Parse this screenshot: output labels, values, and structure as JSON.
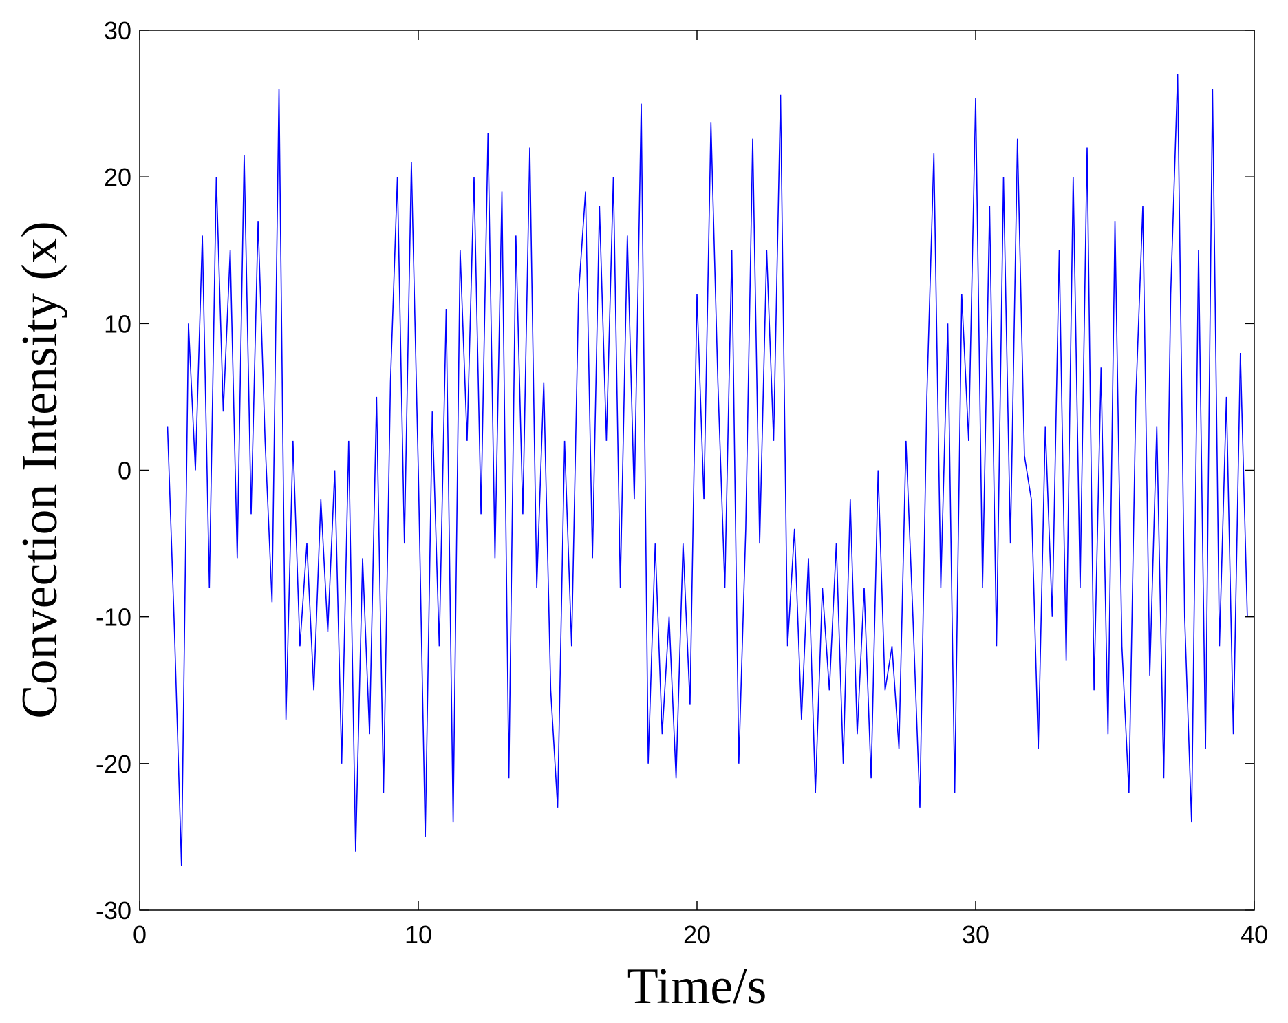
{
  "chart_data": {
    "type": "line",
    "xlabel": "Time/s",
    "ylabel": "Convection Intensity (x)",
    "xlim": [
      0,
      40
    ],
    "ylim": [
      -30,
      30
    ],
    "xticks": [
      0,
      10,
      20,
      30,
      40
    ],
    "yticks": [
      -30,
      -20,
      -10,
      0,
      10,
      20,
      30
    ],
    "x": [
      1,
      1.25,
      1.5,
      1.75,
      2,
      2.25,
      2.5,
      2.75,
      3,
      3.25,
      3.5,
      3.75,
      4,
      4.25,
      4.5,
      4.75,
      5,
      5.25,
      5.5,
      5.75,
      6,
      6.25,
      6.5,
      6.75,
      7,
      7.25,
      7.5,
      7.75,
      8,
      8.25,
      8.5,
      8.75,
      9,
      9.25,
      9.5,
      9.75,
      10,
      10.25,
      10.5,
      10.75,
      11,
      11.25,
      11.5,
      11.75,
      12,
      12.25,
      12.5,
      12.75,
      13,
      13.25,
      13.5,
      13.75,
      14,
      14.25,
      14.5,
      14.75,
      15,
      15.25,
      15.5,
      15.75,
      16,
      16.25,
      16.5,
      16.75,
      17,
      17.25,
      17.5,
      17.75,
      18,
      18.25,
      18.5,
      18.75,
      19,
      19.25,
      19.5,
      19.75,
      20,
      20.25,
      20.5,
      20.75,
      21,
      21.25,
      21.5,
      21.75,
      22,
      22.25,
      22.5,
      22.75,
      23,
      23.25,
      23.5,
      23.75,
      24,
      24.25,
      24.5,
      24.75,
      25,
      25.25,
      25.5,
      25.75,
      26,
      26.25,
      26.5,
      26.75,
      27,
      27.25,
      27.5,
      27.75,
      28,
      28.25,
      28.5,
      28.75,
      29,
      29.25,
      29.5,
      29.75,
      30,
      30.25,
      30.5,
      30.75,
      31,
      31.25,
      31.5,
      31.75,
      32,
      32.25,
      32.5,
      32.75,
      33,
      33.25,
      33.5,
      33.75,
      34,
      34.25,
      34.5,
      34.75,
      35,
      35.25,
      35.5,
      35.75,
      36,
      36.25,
      36.5,
      36.75,
      37,
      37.25,
      37.5,
      37.75,
      38,
      38.25,
      38.5,
      38.75,
      39,
      39.25,
      39.5,
      39.75
    ],
    "series": [
      {
        "color": "#0000ff",
        "values": [
          3,
          -11,
          -27,
          10,
          0,
          16,
          -8,
          20,
          4,
          15,
          -6,
          21.5,
          -3,
          17,
          2,
          -9,
          26,
          -17,
          2,
          -12,
          -5,
          -15,
          -2,
          -11,
          0,
          -20,
          2,
          -26,
          -6,
          -18,
          5,
          -22,
          6,
          20,
          -5,
          21,
          0,
          -25,
          4,
          -12,
          11,
          -24,
          15,
          2,
          20,
          -3,
          23,
          -6,
          19,
          -21,
          16,
          -3,
          22,
          -8,
          6,
          -15,
          -23,
          2,
          -12,
          12,
          19,
          -6,
          18,
          2,
          20,
          -8,
          16,
          -2,
          25,
          -20,
          -5,
          -18,
          -10,
          -21,
          -5,
          -16,
          12,
          -2,
          23.7,
          6,
          -8,
          15,
          -20,
          -4,
          22.6,
          -5,
          15,
          2,
          25.6,
          -12,
          -4,
          -17,
          -6,
          -22,
          -8,
          -15,
          -5,
          -20,
          -2,
          -18,
          -8,
          -21,
          0,
          -15,
          -12,
          -19,
          2,
          -10,
          -23,
          5,
          21.6,
          -8,
          10,
          -22,
          12,
          2,
          25.4,
          -8,
          18,
          -12,
          20,
          -5,
          22.6,
          1,
          -2,
          -19,
          3,
          -10,
          15,
          -13,
          20,
          -8,
          22,
          -15,
          7,
          -18,
          17,
          -12,
          -22,
          5,
          18,
          -14,
          3,
          -21,
          12,
          27,
          -10,
          -24,
          15,
          -19,
          26,
          -12,
          5,
          -18,
          8,
          -10
        ]
      }
    ]
  }
}
